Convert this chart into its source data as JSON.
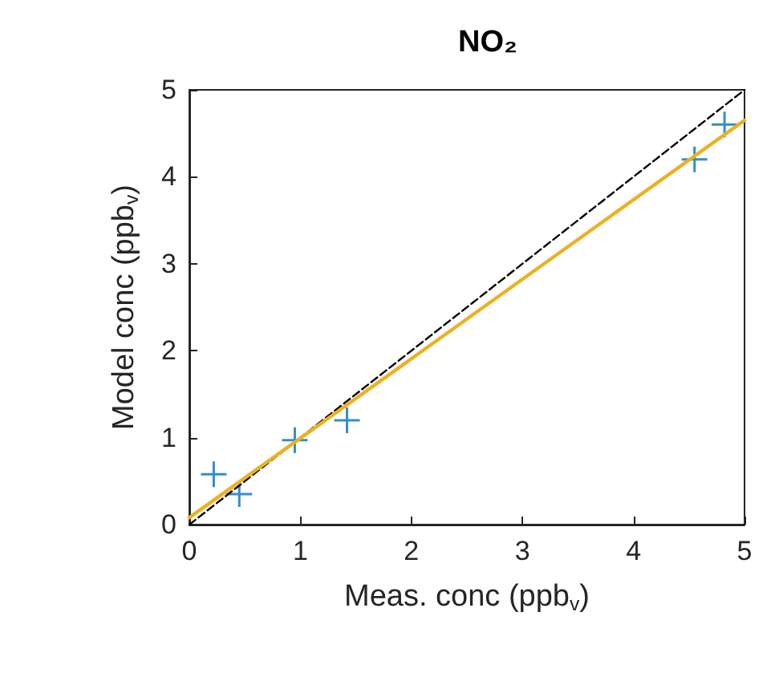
{
  "chart_data": {
    "type": "scatter",
    "title": "NO₂",
    "xlabel": "Meas. conc (ppb$_{v}$)",
    "ylabel": "Model conc (ppb$_{v}$)",
    "xlim": [
      0,
      5
    ],
    "ylim": [
      0,
      5
    ],
    "xticks": [
      0,
      1,
      2,
      3,
      4,
      5
    ],
    "yticks": [
      0,
      1,
      2,
      3,
      4,
      5
    ],
    "grid": false,
    "series": [
      {
        "color": "#0072bd",
        "marker": "cross",
        "x": [
          0.22,
          0.45,
          0.95,
          1.42,
          4.55,
          4.82
        ],
        "values": [
          0.58,
          0.35,
          0.97,
          1.2,
          4.2,
          4.6
        ]
      },
      {
        "type": "line",
        "color": "#000000",
        "line_style": "dashed",
        "marker": "none",
        "x": [
          0,
          5
        ],
        "values": [
          0,
          5
        ]
      },
      {
        "type": "line",
        "color": "#edb120",
        "line_style": "solid",
        "marker": "none",
        "x": [
          0,
          5
        ],
        "values": [
          0.08,
          4.65
        ]
      }
    ]
  }
}
